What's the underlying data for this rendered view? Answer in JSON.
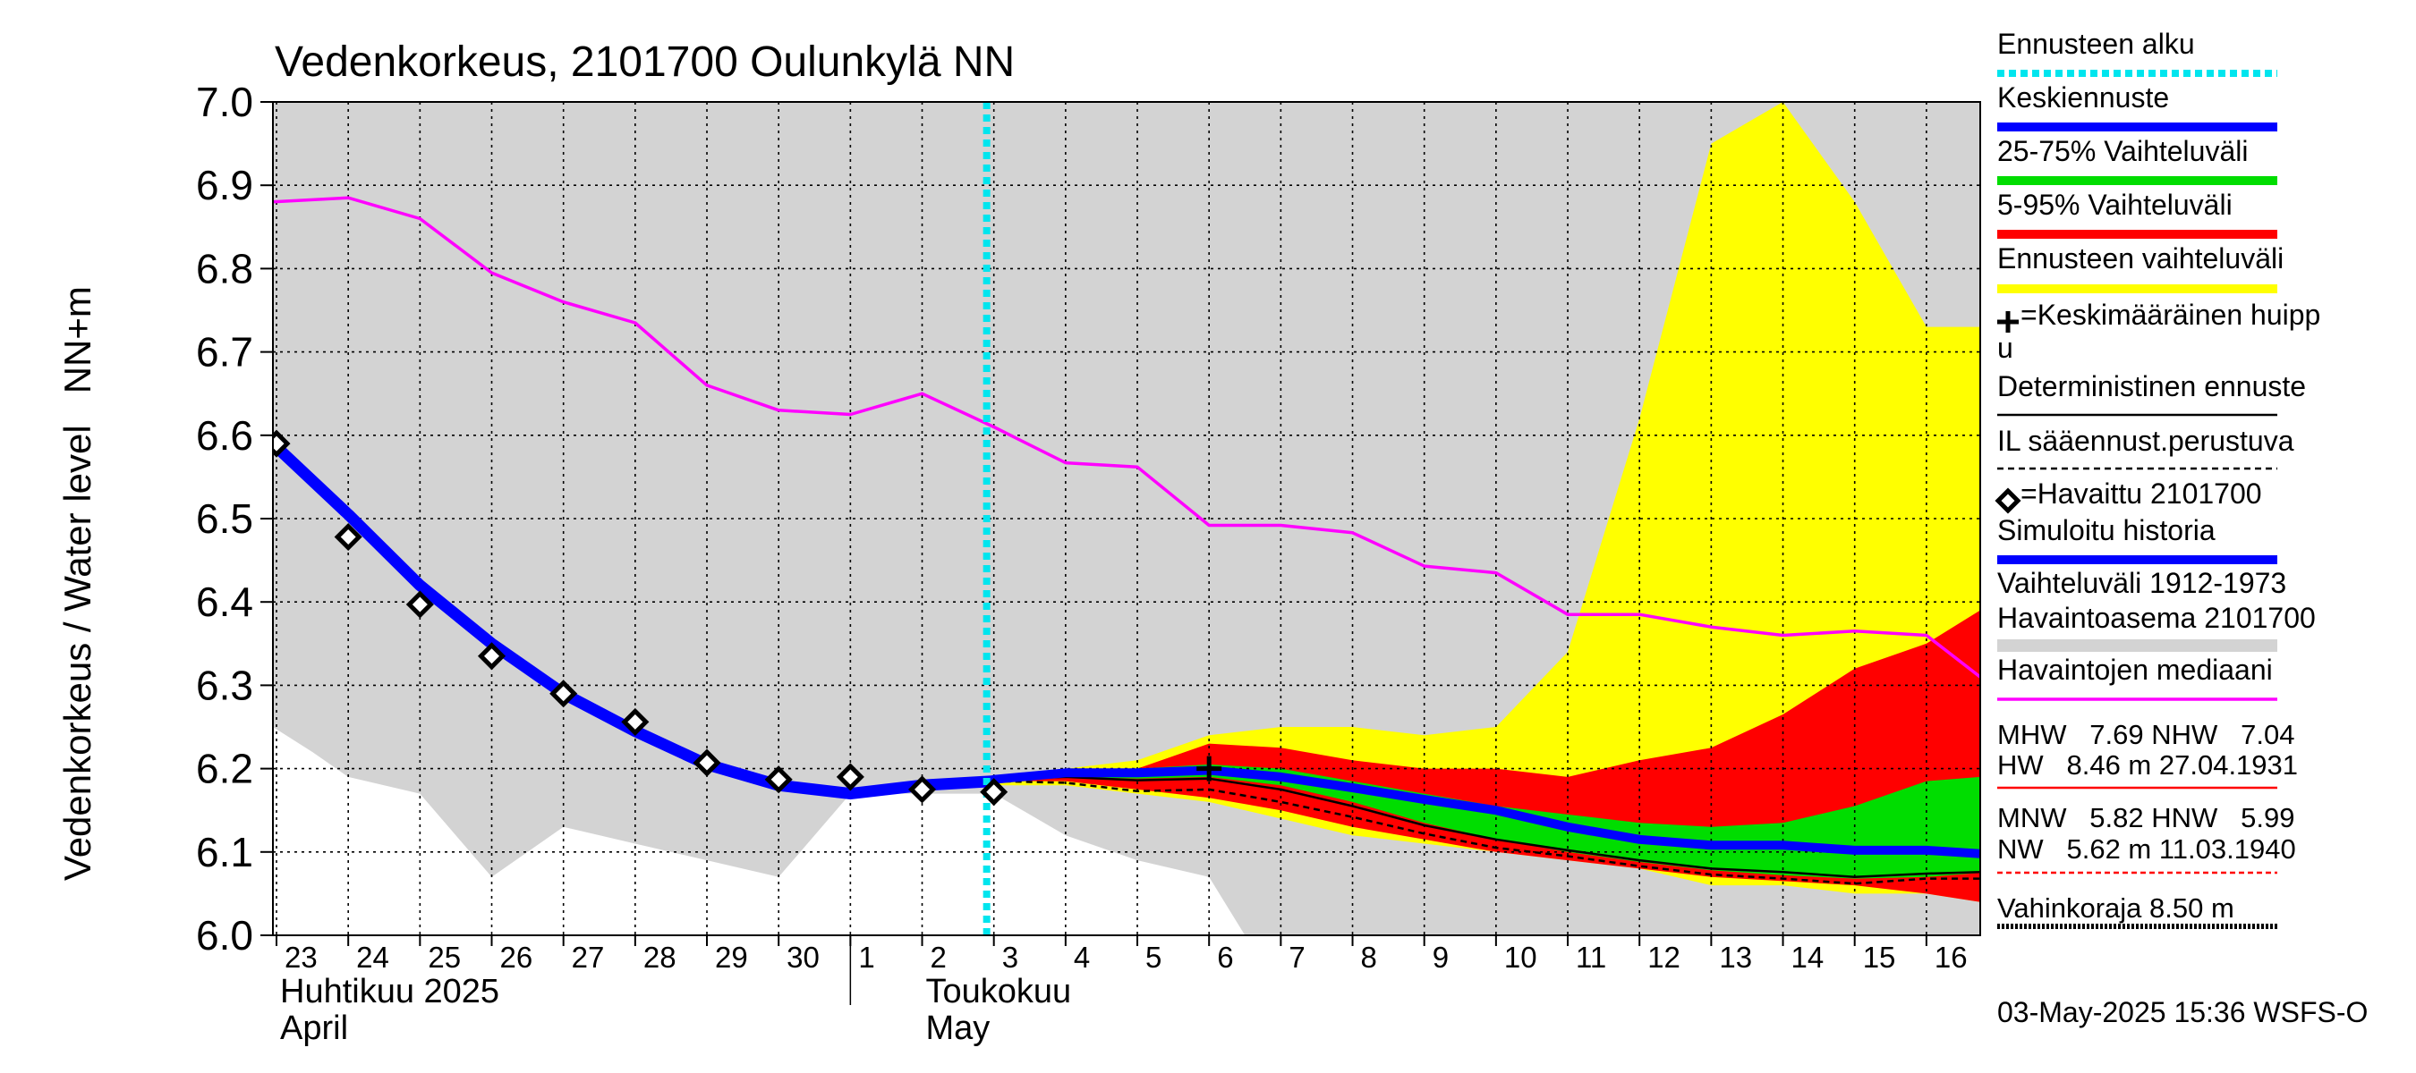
{
  "chart_data": {
    "type": "area",
    "title": "Vedenkorkeus, 2101700 Oulunkylä NN",
    "ylabel": "Vedenkorkeus / Water level   NN+m",
    "ylim": [
      6.0,
      7.0
    ],
    "y_ticks": [
      6.0,
      6.1,
      6.2,
      6.3,
      6.4,
      6.5,
      6.6,
      6.7,
      6.8,
      6.9,
      7.0
    ],
    "y_tick_labels": [
      "6.0",
      "6.1",
      "6.2",
      "6.3",
      "6.4",
      "6.5",
      "6.6",
      "6.7",
      "6.8",
      "6.9",
      "7.0"
    ],
    "x_day_offset_range": [
      -0.05,
      23.75
    ],
    "x_ticks": [
      {
        "day": 0,
        "label": "23"
      },
      {
        "day": 1,
        "label": "24"
      },
      {
        "day": 2,
        "label": "25"
      },
      {
        "day": 3,
        "label": "26"
      },
      {
        "day": 4,
        "label": "27"
      },
      {
        "day": 5,
        "label": "28"
      },
      {
        "day": 6,
        "label": "29"
      },
      {
        "day": 7,
        "label": "30"
      },
      {
        "day": 8,
        "label": "1"
      },
      {
        "day": 9,
        "label": "2"
      },
      {
        "day": 10,
        "label": "3"
      },
      {
        "day": 11,
        "label": "4"
      },
      {
        "day": 12,
        "label": "5"
      },
      {
        "day": 13,
        "label": "6"
      },
      {
        "day": 14,
        "label": "7"
      },
      {
        "day": 15,
        "label": "8"
      },
      {
        "day": 16,
        "label": "9"
      },
      {
        "day": 17,
        "label": "10"
      },
      {
        "day": 18,
        "label": "11"
      },
      {
        "day": 19,
        "label": "12"
      },
      {
        "day": 20,
        "label": "13"
      },
      {
        "day": 21,
        "label": "14"
      },
      {
        "day": 22,
        "label": "15"
      },
      {
        "day": 23,
        "label": "16"
      }
    ],
    "month_labels": [
      {
        "day": 0,
        "fi": "Huhtikuu  2025",
        "en": "April"
      },
      {
        "day": 9,
        "fi": "Toukokuu",
        "en": "May"
      }
    ],
    "forecast_start_day": 9.9,
    "series": [
      {
        "name": "Vaihteluväli 1912-1973 Havaintoasema 2101700",
        "kind": "band",
        "color": "#d3d3d3",
        "x": [
          -0.05,
          0.5,
          1,
          2,
          3,
          4,
          5,
          6,
          7,
          8,
          9,
          10,
          11,
          12,
          13,
          13.5,
          14,
          15,
          16,
          17,
          18,
          19,
          20,
          21,
          22,
          23,
          23.75
        ],
        "low": [
          6.25,
          6.22,
          6.19,
          6.17,
          6.07,
          6.13,
          6.11,
          6.09,
          6.07,
          6.17,
          6.17,
          6.17,
          6.12,
          6.09,
          6.07,
          6.0,
          6.0,
          6.0,
          6.0,
          6.0,
          6.0,
          6.0,
          6.0,
          6.0,
          6.0,
          6.0,
          6.0
        ],
        "high": [
          7.0,
          7.0,
          7.0,
          7.0,
          7.0,
          7.0,
          7.0,
          7.0,
          7.0,
          7.0,
          7.0,
          7.0,
          7.0,
          7.0,
          7.0,
          7.0,
          7.0,
          7.0,
          7.0,
          7.0,
          7.0,
          7.0,
          7.0,
          7.0,
          7.0,
          7.0,
          7.0
        ]
      },
      {
        "name": "Ennusteen vaihteluväli",
        "kind": "band",
        "color": "#ffff00",
        "x": [
          10,
          11,
          12,
          13,
          14,
          15,
          16,
          17,
          18,
          19,
          20,
          21,
          22,
          23,
          23.75
        ],
        "low": [
          6.18,
          6.18,
          6.17,
          6.16,
          6.14,
          6.12,
          6.11,
          6.1,
          6.09,
          6.08,
          6.06,
          6.06,
          6.05,
          6.05,
          6.04
        ],
        "high": [
          6.19,
          6.2,
          6.21,
          6.24,
          6.25,
          6.25,
          6.24,
          6.25,
          6.34,
          6.62,
          6.95,
          7.0,
          6.88,
          6.73,
          6.73
        ]
      },
      {
        "name": "5-95% Vaihteluväli",
        "kind": "band",
        "color": "#ff0000",
        "x": [
          10,
          11,
          12,
          13,
          14,
          15,
          16,
          17,
          18,
          19,
          20,
          21,
          22,
          23,
          23.75
        ],
        "low": [
          6.185,
          6.185,
          6.175,
          6.165,
          6.15,
          6.13,
          6.115,
          6.1,
          6.09,
          6.08,
          6.07,
          6.065,
          6.06,
          6.05,
          6.04
        ],
        "high": [
          6.19,
          6.2,
          6.2,
          6.23,
          6.225,
          6.21,
          6.2,
          6.2,
          6.19,
          6.21,
          6.225,
          6.265,
          6.32,
          6.35,
          6.39
        ]
      },
      {
        "name": "25-75% Vaihteluväli",
        "kind": "band",
        "color": "#00dd00",
        "x": [
          10,
          11,
          12,
          13,
          14,
          15,
          16,
          17,
          18,
          19,
          20,
          21,
          22,
          23,
          23.75
        ],
        "low": [
          6.187,
          6.19,
          6.188,
          6.19,
          6.18,
          6.16,
          6.135,
          6.115,
          6.1,
          6.088,
          6.078,
          6.072,
          6.068,
          6.07,
          6.075
        ],
        "high": [
          6.19,
          6.2,
          6.2,
          6.205,
          6.2,
          6.185,
          6.17,
          6.155,
          6.145,
          6.135,
          6.13,
          6.135,
          6.155,
          6.185,
          6.19
        ]
      },
      {
        "name": "Havaintojen mediaani",
        "kind": "line",
        "color": "#ff00ff",
        "width": 3.5,
        "x": [
          -0.05,
          1,
          2,
          3,
          4,
          5,
          6,
          7,
          8,
          9,
          10,
          11,
          12,
          13,
          14,
          15,
          16,
          17,
          18,
          19,
          20,
          21,
          22,
          23,
          23.75
        ],
        "y": [
          6.88,
          6.885,
          6.86,
          6.795,
          6.76,
          6.735,
          6.66,
          6.63,
          6.625,
          6.65,
          6.61,
          6.567,
          6.562,
          6.492,
          6.492,
          6.483,
          6.443,
          6.435,
          6.385,
          6.385,
          6.37,
          6.36,
          6.365,
          6.36,
          6.31
        ]
      },
      {
        "name": "IL sääennust.perustuva",
        "kind": "line",
        "color": "#000000",
        "width": 2.5,
        "dash": "7 5",
        "x": [
          10,
          11,
          12,
          13,
          14,
          15,
          16,
          17,
          18,
          19,
          20,
          21,
          22,
          23,
          23.75
        ],
        "y": [
          6.185,
          6.183,
          6.173,
          6.175,
          6.16,
          6.142,
          6.122,
          6.105,
          6.095,
          6.083,
          6.073,
          6.068,
          6.062,
          6.068,
          6.068
        ]
      },
      {
        "name": "Deterministinen ennuste",
        "kind": "line",
        "color": "#000000",
        "width": 2.5,
        "x": [
          10,
          11,
          12,
          13,
          14,
          15,
          16,
          17,
          18,
          19,
          20,
          21,
          22,
          23,
          23.75
        ],
        "y": [
          6.187,
          6.19,
          6.186,
          6.188,
          6.175,
          6.155,
          6.132,
          6.115,
          6.102,
          6.09,
          6.08,
          6.076,
          6.07,
          6.074,
          6.076
        ]
      },
      {
        "name": "Simuloitu historia",
        "kind": "line",
        "color": "#0000ff",
        "width": 13,
        "x": [
          -0.05,
          1,
          2,
          3,
          4,
          5,
          6,
          7,
          8,
          9,
          10
        ],
        "y": [
          6.59,
          6.505,
          6.42,
          6.35,
          6.29,
          6.245,
          6.205,
          6.18,
          6.17,
          6.18,
          6.185
        ]
      },
      {
        "name": "Keskiennuste",
        "kind": "line",
        "color": "#0000ff",
        "width": 10,
        "x": [
          10,
          11,
          12,
          13,
          14,
          15,
          16,
          17,
          18,
          19,
          20,
          21,
          22,
          23,
          23.75
        ],
        "y": [
          6.187,
          6.195,
          6.195,
          6.198,
          6.19,
          6.177,
          6.163,
          6.15,
          6.13,
          6.115,
          6.108,
          6.108,
          6.102,
          6.102,
          6.098
        ]
      },
      {
        "name": "Havaittu 2101700",
        "kind": "markers",
        "color": "#000000",
        "x": [
          0,
          1,
          2,
          3,
          4,
          5,
          6,
          7,
          8,
          9,
          10
        ],
        "y": [
          6.59,
          6.478,
          6.397,
          6.335,
          6.29,
          6.256,
          6.207,
          6.187,
          6.19,
          6.175,
          6.172
        ]
      },
      {
        "name": "Keskimääräinen huippu",
        "kind": "cross",
        "color": "#000000",
        "x": [
          13
        ],
        "y": [
          6.2
        ]
      }
    ],
    "legend": [
      {
        "label": "Ennusteen alku",
        "sample": "dotted-cyan"
      },
      {
        "label": "Keskiennuste",
        "sample": "line-blue"
      },
      {
        "label": "25-75% Vaihteluväli",
        "sample": "line-green"
      },
      {
        "label": "5-95% Vaihteluväli",
        "sample": "line-red"
      },
      {
        "label": "Ennusteen vaihteluväli",
        "sample": "line-yellow"
      },
      {
        "label": "=Keskimääräinen huipp",
        "label2": "u",
        "sample": "cross"
      },
      {
        "label": "Deterministinen ennuste",
        "sample": "line-black"
      },
      {
        "label": "IL sääennust.perustuva",
        "sample": "dash-black"
      },
      {
        "label": "=Havaittu 2101700",
        "sample": "diamond"
      },
      {
        "label": "Simuloitu historia",
        "sample": "line-blue"
      },
      {
        "label": "Vaihteluväli 1912-1973",
        "label2": " Havaintoasema 2101700",
        "sample": "line-gray"
      },
      {
        "label": "Havaintojen mediaani",
        "sample": "line-magenta"
      }
    ],
    "stats": {
      "mhw_line": "MHW   7.69 NHW   7.04",
      "hw_line": "HW   8.46 m 27.04.1931",
      "mnw_line": "MNW   5.82 HNW   5.99",
      "nw_line": "NW   5.62 m 11.03.1940",
      "damage_line": "Vahinkoraja 8.50 m"
    },
    "footer": "03-May-2025 15:36 WSFS-O",
    "colors": {
      "range": "#d3d3d3",
      "yellow": "#ffff00",
      "red": "#ff0000",
      "green": "#00dd00",
      "blue": "#0000ff",
      "magenta": "#ff00ff",
      "cyan": "#00e5ee",
      "black": "#000000"
    }
  }
}
